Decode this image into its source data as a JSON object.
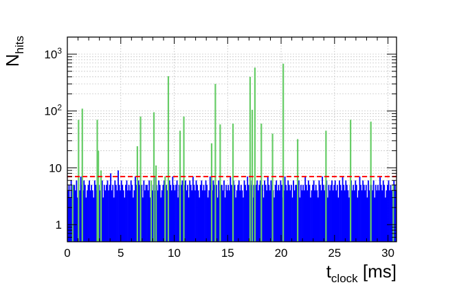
{
  "chart_data": {
    "type": "histogram",
    "xlabel": {
      "main": "t",
      "sub": "clock",
      "unit": " [ms]"
    },
    "ylabel": {
      "main": "N",
      "sub": "hits"
    },
    "xlim": [
      0,
      30.8
    ],
    "ylim": [
      0.5,
      2000
    ],
    "yscale": "log",
    "grid": true,
    "x_ticks": [
      "0",
      "5",
      "10",
      "15",
      "20",
      "25",
      "30"
    ],
    "y_ticks": [
      {
        "value": 1,
        "base": "1",
        "exp": ""
      },
      {
        "value": 10,
        "base": "10",
        "exp": ""
      },
      {
        "value": 100,
        "base": "10",
        "exp": "2"
      },
      {
        "value": 1000,
        "base": "10",
        "exp": "3"
      }
    ],
    "threshold": {
      "value": 7,
      "color": "#ff0000"
    },
    "colors": {
      "background_hits": "#0000ff",
      "spikes": "#66cc66",
      "threshold": "#ff0000"
    },
    "series": [
      {
        "role": "background",
        "binning": {
          "start": 0,
          "width": 0.1
        },
        "values": [
          4,
          5,
          3,
          6,
          4,
          5,
          5,
          4,
          6,
          3,
          5,
          4,
          7,
          5,
          4,
          6,
          5,
          3,
          4,
          5,
          6,
          4,
          5,
          4,
          3,
          6,
          5,
          4,
          7,
          5,
          4,
          5,
          6,
          3,
          5,
          4,
          5,
          6,
          4,
          5,
          8,
          4,
          5,
          3,
          6,
          5,
          4,
          9,
          5,
          4,
          6,
          5,
          4,
          3,
          5,
          6,
          4,
          5,
          4,
          6,
          5,
          3,
          4,
          7,
          5,
          4,
          6,
          5,
          4,
          5,
          3,
          6,
          4,
          5,
          5,
          4,
          6,
          3,
          5,
          4,
          5,
          4,
          7,
          5,
          4,
          6,
          5,
          3,
          4,
          5,
          6,
          4,
          5,
          4,
          3,
          6,
          5,
          4,
          7,
          5,
          4,
          5,
          6,
          3,
          5,
          4,
          5,
          6,
          4,
          5,
          6,
          4,
          5,
          3,
          6,
          5,
          4,
          7,
          5,
          4,
          6,
          5,
          4,
          3,
          5,
          6,
          4,
          5,
          4,
          6,
          5,
          3,
          4,
          7,
          5,
          4,
          6,
          5,
          4,
          5,
          3,
          6,
          4,
          5,
          5,
          4,
          6,
          3,
          5,
          4,
          5,
          4,
          7,
          5,
          4,
          6,
          5,
          3,
          4,
          5,
          6,
          4,
          5,
          4,
          3,
          6,
          5,
          4,
          7,
          5,
          4,
          5,
          6,
          3,
          5,
          4,
          5,
          6,
          4,
          5,
          6,
          4,
          5,
          3,
          6,
          5,
          4,
          7,
          5,
          4,
          6,
          5,
          4,
          3,
          5,
          6,
          4,
          5,
          4,
          6,
          5,
          3,
          4,
          7,
          5,
          4,
          6,
          5,
          4,
          5,
          3,
          6,
          4,
          5,
          5,
          4,
          6,
          3,
          5,
          4,
          5,
          4,
          7,
          5,
          4,
          6,
          5,
          3,
          4,
          5,
          6,
          4,
          5,
          4,
          3,
          6,
          5,
          4,
          7,
          5,
          4,
          5,
          6,
          3,
          5,
          4,
          5,
          6,
          4,
          5,
          6,
          4,
          5,
          3,
          6,
          5,
          4,
          7,
          5,
          4,
          6,
          5,
          4,
          3,
          5,
          6,
          4,
          5,
          4,
          6,
          5,
          3,
          4,
          7,
          5,
          4,
          6,
          5,
          4,
          5,
          3,
          6,
          4,
          5,
          5,
          4,
          6,
          3,
          5,
          4,
          5,
          4,
          7,
          5,
          4,
          6,
          5,
          3,
          4,
          5,
          6,
          4,
          5,
          4,
          3,
          6,
          5,
          4,
          7,
          5,
          4,
          5,
          6,
          3,
          5,
          4
        ]
      },
      {
        "role": "spikes",
        "points": [
          {
            "x": 0.5,
            "y": 5
          },
          {
            "x": 1.05,
            "y": 70
          },
          {
            "x": 1.4,
            "y": 110
          },
          {
            "x": 2.8,
            "y": 70
          },
          {
            "x": 2.9,
            "y": 20
          },
          {
            "x": 3.15,
            "y": 9
          },
          {
            "x": 6.55,
            "y": 24
          },
          {
            "x": 6.85,
            "y": 80
          },
          {
            "x": 7.85,
            "y": 6
          },
          {
            "x": 8.1,
            "y": 95
          },
          {
            "x": 8.3,
            "y": 11
          },
          {
            "x": 9.15,
            "y": 7
          },
          {
            "x": 9.45,
            "y": 410
          },
          {
            "x": 10.55,
            "y": 45
          },
          {
            "x": 10.9,
            "y": 80
          },
          {
            "x": 13.5,
            "y": 27
          },
          {
            "x": 13.85,
            "y": 300
          },
          {
            "x": 14.3,
            "y": 58
          },
          {
            "x": 15.5,
            "y": 60
          },
          {
            "x": 17.1,
            "y": 400
          },
          {
            "x": 17.3,
            "y": 105
          },
          {
            "x": 17.55,
            "y": 580
          },
          {
            "x": 18.15,
            "y": 60
          },
          {
            "x": 19.2,
            "y": 40
          },
          {
            "x": 20.2,
            "y": 680
          },
          {
            "x": 21.55,
            "y": 32
          },
          {
            "x": 24.2,
            "y": 45
          },
          {
            "x": 26.5,
            "y": 70
          },
          {
            "x": 28.4,
            "y": 65
          },
          {
            "x": 30.5,
            "y": 5
          }
        ]
      }
    ]
  }
}
